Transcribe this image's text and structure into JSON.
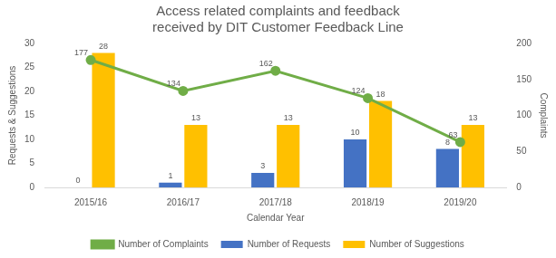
{
  "chart_data": {
    "type": "bar",
    "title": "Access related complaints and feedback received by DIT Customer Feedback Line",
    "x_label": "Calendar Year",
    "y_label": "Requests & Suggestions",
    "y2_label": "Complaints",
    "categories": [
      "2015/16",
      "2016/17",
      "2017/18",
      "2018/19",
      "2019/20"
    ],
    "series": [
      {
        "name": "Number of Requests",
        "type": "bar",
        "color": "#4472c4",
        "values": [
          0,
          1,
          3,
          10,
          8
        ]
      },
      {
        "name": "Number of Suggestions",
        "type": "bar",
        "color": "#ffc000",
        "values": [
          28,
          13,
          13,
          18,
          13
        ]
      },
      {
        "name": "Number of Complaints",
        "type": "line",
        "color": "#70ad47",
        "marker": "circle",
        "axis": "y2",
        "values": [
          177,
          134,
          162,
          124,
          63
        ]
      }
    ],
    "ylim": [
      0,
      30
    ],
    "yticks": [
      0,
      5,
      10,
      15,
      20,
      25,
      30
    ],
    "y2lim": [
      0,
      200
    ],
    "y2ticks": [
      0,
      50,
      100,
      150,
      200
    ],
    "grid": false,
    "legend": "bottom",
    "data_labels": true
  }
}
